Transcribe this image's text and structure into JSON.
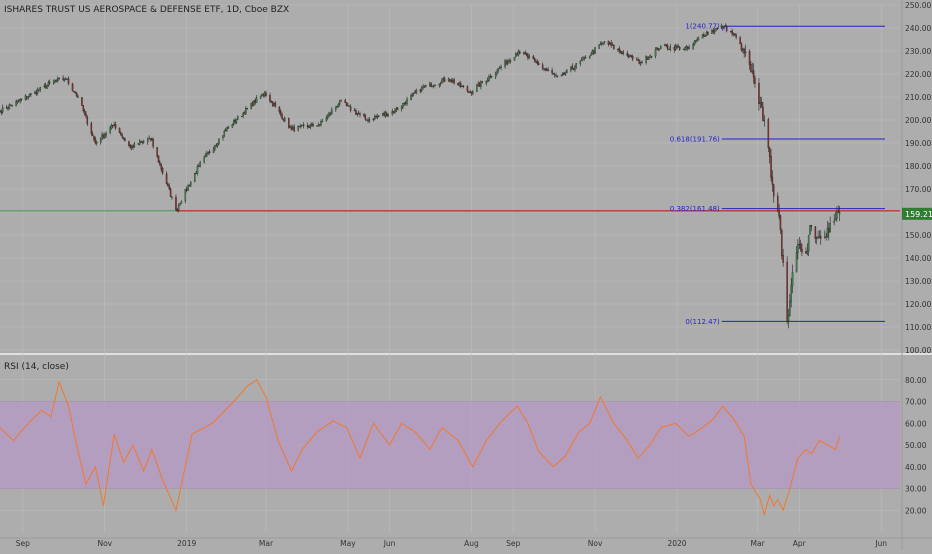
{
  "header": {
    "symbol_title": "ISHARES TRUST US AEROSPACE & DEFENSE ETF, 1D, Cboe BZX"
  },
  "indicator": {
    "label": "RSI (14, close)"
  },
  "colors": {
    "background": "#adadad",
    "grid": "#bdbdbd",
    "candle_up": "#3d8b4a",
    "candle_down": "#8b2e2e",
    "fib_line": "#2222cc",
    "support_line": "#cc2222",
    "last_price_badge": "#2e7d32",
    "rsi_line": "#f07830",
    "rsi_band": "#b79ac6",
    "axis_text": "#333333"
  },
  "chart_data": [
    {
      "type": "candlestick",
      "title": "ISHARES TRUST US AEROSPACE & DEFENSE ETF, 1D, Cboe BZX",
      "x_range": [
        "2018-08-15",
        "2020-06-15"
      ],
      "ylim": [
        100,
        250
      ],
      "y_ticks": [
        100,
        110,
        120,
        130,
        140,
        150,
        160,
        170,
        180,
        190,
        200,
        210,
        220,
        230,
        240,
        250
      ],
      "y_tick_labels": [
        "100.00",
        "110.00",
        "120.00",
        "130.00",
        "140.00",
        "150.00",
        "160.00",
        "170.00",
        "180.00",
        "190.00",
        "200.00",
        "210.00",
        "220.00",
        "230.00",
        "240.00",
        "250.00"
      ],
      "x_tick_labels": [
        {
          "date": "2018-09-01",
          "label": "Sep"
        },
        {
          "date": "2018-11-01",
          "label": "Nov"
        },
        {
          "date": "2019-01-01",
          "label": "2019"
        },
        {
          "date": "2019-03-01",
          "label": "Mar"
        },
        {
          "date": "2019-05-01",
          "label": "May"
        },
        {
          "date": "2019-06-01",
          "label": "Jun"
        },
        {
          "date": "2019-08-01",
          "label": "Aug"
        },
        {
          "date": "2019-09-01",
          "label": "Sep"
        },
        {
          "date": "2019-11-01",
          "label": "Nov"
        },
        {
          "date": "2020-01-01",
          "label": "2020"
        },
        {
          "date": "2020-03-01",
          "label": "Mar"
        },
        {
          "date": "2020-04-01",
          "label": "Apr"
        },
        {
          "date": "2020-06-01",
          "label": "Jun"
        }
      ],
      "close_path": [
        [
          "2018-08-15",
          204
        ],
        [
          "2018-08-25",
          207
        ],
        [
          "2018-09-10",
          212
        ],
        [
          "2018-09-25",
          217
        ],
        [
          "2018-10-03",
          218
        ],
        [
          "2018-10-12",
          210
        ],
        [
          "2018-10-25",
          190
        ],
        [
          "2018-11-08",
          198
        ],
        [
          "2018-11-20",
          188
        ],
        [
          "2018-12-05",
          192
        ],
        [
          "2018-12-24",
          161
        ],
        [
          "2019-01-10",
          180
        ],
        [
          "2019-02-01",
          197
        ],
        [
          "2019-02-28",
          212
        ],
        [
          "2019-03-20",
          196
        ],
        [
          "2019-04-10",
          198
        ],
        [
          "2019-04-25",
          208
        ],
        [
          "2019-05-15",
          200
        ],
        [
          "2019-06-05",
          204
        ],
        [
          "2019-06-25",
          214
        ],
        [
          "2019-07-15",
          218
        ],
        [
          "2019-07-31",
          212
        ],
        [
          "2019-08-15",
          219
        ],
        [
          "2019-09-05",
          230
        ],
        [
          "2019-09-20",
          224
        ],
        [
          "2019-10-05",
          218
        ],
        [
          "2019-10-25",
          227
        ],
        [
          "2019-11-08",
          234
        ],
        [
          "2019-11-25",
          228
        ],
        [
          "2019-12-05",
          225
        ],
        [
          "2019-12-20",
          232
        ],
        [
          "2020-01-10",
          231
        ],
        [
          "2020-01-20",
          237
        ],
        [
          "2020-02-05",
          240.77
        ],
        [
          "2020-02-14",
          236
        ],
        [
          "2020-02-24",
          224
        ],
        [
          "2020-03-02",
          207
        ],
        [
          "2020-03-06",
          200
        ],
        [
          "2020-03-09",
          188
        ],
        [
          "2020-03-12",
          172
        ],
        [
          "2020-03-16",
          161
        ],
        [
          "2020-03-20",
          138
        ],
        [
          "2020-03-23",
          112.47
        ],
        [
          "2020-03-26",
          128
        ],
        [
          "2020-04-01",
          146
        ],
        [
          "2020-04-06",
          142
        ],
        [
          "2020-04-09",
          154
        ],
        [
          "2020-04-15",
          149
        ],
        [
          "2020-04-22",
          153
        ],
        [
          "2020-04-28",
          157
        ],
        [
          "2020-05-01",
          159.21
        ]
      ],
      "fibonacci": [
        {
          "label": "1(240.77)",
          "value": 240.77
        },
        {
          "label": "0.618(191.76)",
          "value": 191.76
        },
        {
          "label": "0.382(161.48)",
          "value": 161.48
        },
        {
          "label": "0(112.47)",
          "value": 112.47
        }
      ],
      "fib_start_date": "2020-01-12",
      "support_line": {
        "value": 160.5,
        "start_date": "2018-12-24",
        "end_date": "2020-06-15"
      },
      "last_price": {
        "value": 159.21,
        "label": "159.21"
      }
    },
    {
      "type": "line",
      "title": "RSI (14, close)",
      "ylim": [
        10,
        90
      ],
      "y_ticks": [
        20,
        30,
        40,
        50,
        60,
        70,
        80
      ],
      "y_tick_labels": [
        "20.00",
        "30.00",
        "40.00",
        "50.00",
        "60.00",
        "70.00",
        "80.00"
      ],
      "band": [
        30,
        70
      ],
      "series": [
        {
          "points": [
            [
              "2018-08-15",
              58
            ],
            [
              "2018-08-25",
              52
            ],
            [
              "2018-09-05",
              60
            ],
            [
              "2018-09-15",
              66
            ],
            [
              "2018-09-22",
              63
            ],
            [
              "2018-09-28",
              79
            ],
            [
              "2018-10-05",
              68
            ],
            [
              "2018-10-11",
              50
            ],
            [
              "2018-10-18",
              32
            ],
            [
              "2018-10-25",
              40
            ],
            [
              "2018-10-31",
              22
            ],
            [
              "2018-11-08",
              55
            ],
            [
              "2018-11-15",
              42
            ],
            [
              "2018-11-22",
              50
            ],
            [
              "2018-11-30",
              38
            ],
            [
              "2018-12-06",
              48
            ],
            [
              "2018-12-14",
              34
            ],
            [
              "2018-12-24",
              20
            ],
            [
              "2019-01-05",
              55
            ],
            [
              "2019-01-20",
              60
            ],
            [
              "2019-02-05",
              70
            ],
            [
              "2019-02-15",
              77
            ],
            [
              "2019-02-22",
              80
            ],
            [
              "2019-03-01",
              72
            ],
            [
              "2019-03-10",
              52
            ],
            [
              "2019-03-20",
              38
            ],
            [
              "2019-03-28",
              48
            ],
            [
              "2019-04-08",
              56
            ],
            [
              "2019-04-20",
              61
            ],
            [
              "2019-04-30",
              58
            ],
            [
              "2019-05-10",
              44
            ],
            [
              "2019-05-20",
              60
            ],
            [
              "2019-06-01",
              50
            ],
            [
              "2019-06-10",
              60
            ],
            [
              "2019-06-20",
              56
            ],
            [
              "2019-07-01",
              48
            ],
            [
              "2019-07-10",
              58
            ],
            [
              "2019-07-22",
              52
            ],
            [
              "2019-08-02",
              40
            ],
            [
              "2019-08-12",
              52
            ],
            [
              "2019-08-22",
              60
            ],
            [
              "2019-09-04",
              68
            ],
            [
              "2019-09-12",
              60
            ],
            [
              "2019-09-20",
              47
            ],
            [
              "2019-10-01",
              40
            ],
            [
              "2019-10-10",
              45
            ],
            [
              "2019-10-20",
              56
            ],
            [
              "2019-10-28",
              60
            ],
            [
              "2019-11-05",
              72
            ],
            [
              "2019-11-15",
              60
            ],
            [
              "2019-11-25",
              52
            ],
            [
              "2019-12-03",
              44
            ],
            [
              "2019-12-12",
              50
            ],
            [
              "2019-12-20",
              58
            ],
            [
              "2019-12-31",
              60
            ],
            [
              "2020-01-10",
              54
            ],
            [
              "2020-01-20",
              58
            ],
            [
              "2020-01-28",
              62
            ],
            [
              "2020-02-04",
              68
            ],
            [
              "2020-02-12",
              62
            ],
            [
              "2020-02-20",
              54
            ],
            [
              "2020-02-25",
              32
            ],
            [
              "2020-03-03",
              25
            ],
            [
              "2020-03-06",
              18
            ],
            [
              "2020-03-10",
              27
            ],
            [
              "2020-03-13",
              22
            ],
            [
              "2020-03-16",
              25
            ],
            [
              "2020-03-20",
              20
            ],
            [
              "2020-03-25",
              30
            ],
            [
              "2020-03-31",
              44
            ],
            [
              "2020-04-06",
              48
            ],
            [
              "2020-04-10",
              46
            ],
            [
              "2020-04-16",
              52
            ],
            [
              "2020-04-22",
              50
            ],
            [
              "2020-04-28",
              48
            ],
            [
              "2020-05-01",
              54
            ]
          ]
        }
      ]
    }
  ]
}
